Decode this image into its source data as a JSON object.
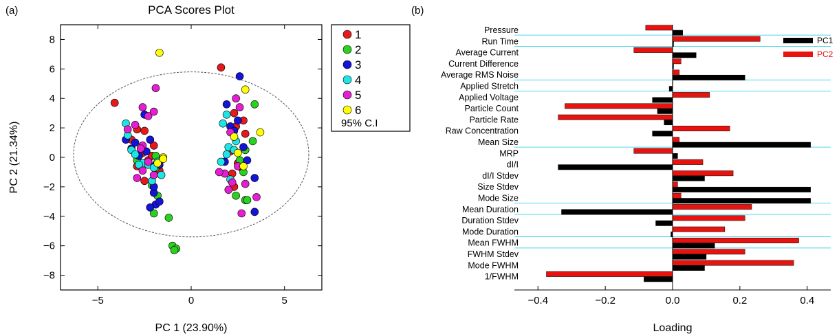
{
  "chart_data": [
    {
      "type": "scatter",
      "panel_label": "(a)",
      "title": "PCA Scores Plot",
      "xlabel": "PC 1 (23.90%)",
      "ylabel": "PC 2 (21.34%)",
      "xlim": [
        -7,
        7
      ],
      "ylim": [
        -9,
        9
      ],
      "xticks": [
        -5,
        0,
        5
      ],
      "xtick_labels": [
        "−5",
        "0",
        "5"
      ],
      "yticks": [
        -8,
        -6,
        -4,
        -2,
        0,
        2,
        4,
        6,
        8
      ],
      "ytick_labels": [
        "−8",
        "−6",
        "−4",
        "−2",
        "0",
        "2",
        "4",
        "6",
        "8"
      ],
      "legend_position": "outside-right",
      "legend_extra": "95% C.I",
      "ellipse": {
        "cx": 0,
        "cy": 0.2,
        "rx": 6.3,
        "ry": 5.6
      },
      "series": [
        {
          "name": "1",
          "color": "#e41a1c",
          "points": [
            [
              -4.1,
              3.7
            ],
            [
              -3.2,
              1.2
            ],
            [
              -2.9,
              1.9
            ],
            [
              -2.5,
              1.8
            ],
            [
              -2.0,
              0.8
            ],
            [
              -2.6,
              0.3
            ],
            [
              -2.3,
              -0.2
            ],
            [
              -2.5,
              -1.6
            ],
            [
              -2.9,
              -0.6
            ],
            [
              -1.7,
              -0.9
            ],
            [
              -2.1,
              0.1
            ],
            [
              1.6,
              6.1
            ],
            [
              2.3,
              3.0
            ],
            [
              2.4,
              2.1
            ],
            [
              2.9,
              1.6
            ],
            [
              2.1,
              0.4
            ],
            [
              2.5,
              -0.4
            ],
            [
              2.2,
              -1.1
            ],
            [
              2.7,
              -0.7
            ],
            [
              2.3,
              -2.0
            ],
            [
              2.8,
              2.5
            ]
          ]
        },
        {
          "name": "2",
          "color": "#2ad11e",
          "points": [
            [
              -2.0,
              -3.8
            ],
            [
              -1.2,
              -4.1
            ],
            [
              -1.0,
              -6.0
            ],
            [
              -0.8,
              -6.2
            ],
            [
              -0.9,
              -6.3
            ],
            [
              -1.9,
              -0.7
            ],
            [
              -2.1,
              -1.9
            ],
            [
              -1.8,
              -2.6
            ],
            [
              -2.9,
              -0.2
            ],
            [
              -1.9,
              0.1
            ],
            [
              3.4,
              3.6
            ],
            [
              3.3,
              1.1
            ],
            [
              2.9,
              -2.9
            ],
            [
              3.0,
              -2.9
            ],
            [
              2.8,
              -1.0
            ],
            [
              2.4,
              -2.6
            ],
            [
              2.9,
              0.5
            ],
            [
              2.6,
              -0.2
            ]
          ]
        },
        {
          "name": "3",
          "color": "#1414d8",
          "points": [
            [
              2.6,
              5.5
            ],
            [
              1.9,
              3.6
            ],
            [
              2.1,
              2.1
            ],
            [
              2.3,
              1.8
            ],
            [
              2.8,
              0.7
            ],
            [
              3.0,
              -0.2
            ],
            [
              3.4,
              -1.4
            ],
            [
              3.4,
              -3.7
            ],
            [
              2.5,
              2.5
            ],
            [
              1.8,
              -0.3
            ],
            [
              -3.5,
              1.2
            ],
            [
              -3.2,
              0.6
            ],
            [
              -3.0,
              1.0
            ],
            [
              -2.4,
              0.4
            ],
            [
              -2.2,
              1.2
            ],
            [
              -1.9,
              -0.5
            ],
            [
              -2.0,
              -2.4
            ],
            [
              -1.9,
              -3.2
            ],
            [
              -1.7,
              -3.0
            ],
            [
              -2.2,
              -3.4
            ],
            [
              -2.5,
              2.9
            ],
            [
              -2.0,
              -2.0
            ],
            [
              -2.8,
              0.1
            ],
            [
              -1.7,
              -0.5
            ]
          ]
        },
        {
          "name": "4",
          "color": "#1ee6e6",
          "points": [
            [
              -3.5,
              2.3
            ],
            [
              -3.4,
              1.5
            ],
            [
              -3.2,
              0.5
            ],
            [
              -3.0,
              0.2
            ],
            [
              -2.6,
              -0.4
            ],
            [
              -2.3,
              -0.5
            ],
            [
              -2.0,
              -0.7
            ],
            [
              -1.6,
              -1.2
            ],
            [
              -1.8,
              -0.3
            ],
            [
              -2.8,
              -0.5
            ],
            [
              1.7,
              2.3
            ],
            [
              1.9,
              2.9
            ],
            [
              2.4,
              1.1
            ],
            [
              2.0,
              0.7
            ],
            [
              2.3,
              0.5
            ],
            [
              1.6,
              -0.3
            ],
            [
              2.1,
              -1.5
            ],
            [
              1.9,
              0.2
            ],
            [
              -2.1,
              -1.6
            ]
          ]
        },
        {
          "name": "5",
          "color": "#e61ed2",
          "points": [
            [
              -3.0,
              2.2
            ],
            [
              -2.6,
              3.4
            ],
            [
              -2.3,
              2.8
            ],
            [
              -1.9,
              4.7
            ],
            [
              -2.0,
              3.1
            ],
            [
              -2.6,
              0.8
            ],
            [
              -2.3,
              -0.3
            ],
            [
              -2.6,
              -0.9
            ],
            [
              -2.9,
              -1.4
            ],
            [
              -2.0,
              -1.2
            ],
            [
              -2.7,
              0.6
            ],
            [
              -3.4,
              1.9
            ],
            [
              2.6,
              3.4
            ],
            [
              2.4,
              4.0
            ],
            [
              2.1,
              1.7
            ],
            [
              2.5,
              -0.6
            ],
            [
              2.2,
              -1.7
            ],
            [
              2.0,
              -2.2
            ],
            [
              2.7,
              -3.8
            ],
            [
              3.5,
              -2.7
            ],
            [
              2.9,
              -1.8
            ],
            [
              1.8,
              -1.1
            ],
            [
              1.5,
              -1.0
            ]
          ]
        },
        {
          "name": "6",
          "color": "#ffff00",
          "points": [
            [
              -1.7,
              7.1
            ],
            [
              -1.5,
              0.0
            ],
            [
              -1.8,
              -0.4
            ],
            [
              -1.5,
              -0.1
            ],
            [
              2.9,
              4.6
            ],
            [
              3.7,
              1.7
            ],
            [
              2.3,
              1.4
            ],
            [
              2.5,
              0.3
            ],
            [
              2.8,
              -0.6
            ]
          ]
        }
      ]
    },
    {
      "type": "bar",
      "orientation": "horizontal",
      "panel_label": "(b)",
      "xlabel": "Loading",
      "ylabel": "",
      "xlim": [
        -0.47,
        0.47
      ],
      "xticks": [
        -0.4,
        -0.2,
        0,
        0.2,
        0.4
      ],
      "xtick_labels": [
        "−0.4",
        "−0.2",
        "0.0",
        "0.2",
        "0.4"
      ],
      "legend_position": "top-right",
      "categories": [
        "Pressure",
        "Run Time",
        "Average Current",
        "Current Difference",
        "Average RMS Noise",
        "Applied Stretch",
        "Applied Voltage",
        "Particle Count",
        "Particle Rate",
        "Raw Concentration",
        "Mean Size",
        "MRP",
        "dI/I",
        "dI/I Stdev",
        "Size Stdev",
        "Mode Size",
        "Mean Duration",
        "Duration Stdev",
        "Mode Duration",
        "Mean FWHM",
        "FWHM Stdev",
        "Mode FWHM",
        "1/FWHM"
      ],
      "series": [
        {
          "name": "PC1",
          "color": "#000000",
          "values": [
            0.03,
            0.003,
            0.07,
            0.003,
            0.215,
            -0.01,
            -0.06,
            -0.045,
            -0.025,
            -0.06,
            0.41,
            0.015,
            -0.34,
            0.095,
            0.41,
            0.41,
            -0.33,
            -0.05,
            -0.005,
            0.125,
            0.1,
            0.095,
            -0.085
          ]
        },
        {
          "name": "PC2",
          "color": "#e8130f",
          "values": [
            -0.08,
            0.26,
            -0.115,
            0.025,
            0.02,
            0.0,
            0.11,
            -0.32,
            -0.34,
            0.17,
            0.02,
            -0.115,
            0.09,
            0.18,
            0.015,
            0.025,
            0.235,
            0.215,
            0.155,
            0.375,
            0.215,
            0.36,
            -0.375
          ]
        }
      ],
      "cyan_line_color": "#4fd8e8",
      "cyan_line_positions": [
        0.5,
        1.5,
        4.5,
        5.5,
        10.5,
        15.5,
        16.5,
        18.5,
        19.5
      ]
    }
  ]
}
